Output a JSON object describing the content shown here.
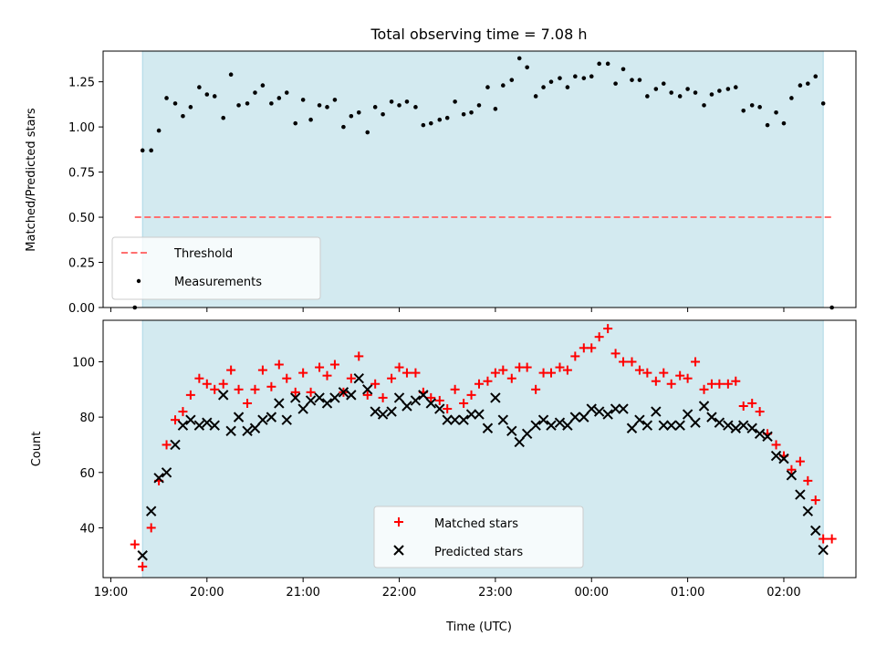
{
  "chart_data": [
    {
      "type": "scatter",
      "title": "Total observing time = 7.08 h",
      "xlabel": "",
      "ylabel": "Matched/Predicted stars",
      "ylim": [
        0,
        1.42
      ],
      "yticks": [
        "0.00",
        "0.25",
        "0.50",
        "0.75",
        "1.00",
        "1.25"
      ],
      "ytick_values": [
        0,
        0.25,
        0.5,
        0.75,
        1.0,
        1.25
      ],
      "xlim": [
        -0.08,
        7.75
      ],
      "xtick_values": [
        0,
        1,
        2,
        3,
        4,
        5,
        6,
        7
      ],
      "observing_window": [
        0.33,
        7.41
      ],
      "shade_color": "#d3eaf0",
      "threshold": {
        "name": "Threshold",
        "value": 0.5,
        "x_range": [
          0.25,
          7.5
        ],
        "color": "#ff7070"
      },
      "series": [
        {
          "name": "Measurements",
          "color": "#000000",
          "points": [
            [
              0.25,
              0.0
            ],
            [
              0.33,
              0.87
            ],
            [
              0.42,
              0.87
            ],
            [
              0.5,
              0.98
            ],
            [
              0.58,
              1.16
            ],
            [
              0.67,
              1.13
            ],
            [
              0.75,
              1.06
            ],
            [
              0.83,
              1.11
            ],
            [
              0.92,
              1.22
            ],
            [
              1.0,
              1.18
            ],
            [
              1.08,
              1.17
            ],
            [
              1.17,
              1.05
            ],
            [
              1.25,
              1.29
            ],
            [
              1.33,
              1.12
            ],
            [
              1.42,
              1.13
            ],
            [
              1.5,
              1.19
            ],
            [
              1.58,
              1.23
            ],
            [
              1.67,
              1.13
            ],
            [
              1.75,
              1.16
            ],
            [
              1.83,
              1.19
            ],
            [
              1.92,
              1.02
            ],
            [
              2.0,
              1.15
            ],
            [
              2.08,
              1.04
            ],
            [
              2.17,
              1.12
            ],
            [
              2.25,
              1.11
            ],
            [
              2.33,
              1.15
            ],
            [
              2.42,
              1.0
            ],
            [
              2.5,
              1.06
            ],
            [
              2.58,
              1.08
            ],
            [
              2.67,
              0.97
            ],
            [
              2.75,
              1.11
            ],
            [
              2.83,
              1.07
            ],
            [
              2.92,
              1.14
            ],
            [
              3.0,
              1.12
            ],
            [
              3.08,
              1.14
            ],
            [
              3.17,
              1.11
            ],
            [
              3.25,
              1.01
            ],
            [
              3.33,
              1.02
            ],
            [
              3.42,
              1.04
            ],
            [
              3.5,
              1.05
            ],
            [
              3.58,
              1.14
            ],
            [
              3.67,
              1.07
            ],
            [
              3.75,
              1.08
            ],
            [
              3.83,
              1.12
            ],
            [
              3.92,
              1.22
            ],
            [
              4.0,
              1.1
            ],
            [
              4.08,
              1.23
            ],
            [
              4.17,
              1.26
            ],
            [
              4.25,
              1.38
            ],
            [
              4.33,
              1.33
            ],
            [
              4.42,
              1.17
            ],
            [
              4.5,
              1.22
            ],
            [
              4.58,
              1.25
            ],
            [
              4.67,
              1.27
            ],
            [
              4.75,
              1.22
            ],
            [
              4.83,
              1.28
            ],
            [
              4.92,
              1.27
            ],
            [
              5.0,
              1.28
            ],
            [
              5.08,
              1.35
            ],
            [
              5.17,
              1.35
            ],
            [
              5.25,
              1.24
            ],
            [
              5.33,
              1.32
            ],
            [
              5.42,
              1.26
            ],
            [
              5.5,
              1.26
            ],
            [
              5.58,
              1.17
            ],
            [
              5.67,
              1.21
            ],
            [
              5.75,
              1.24
            ],
            [
              5.83,
              1.19
            ],
            [
              5.92,
              1.17
            ],
            [
              6.0,
              1.21
            ],
            [
              6.08,
              1.19
            ],
            [
              6.17,
              1.12
            ],
            [
              6.25,
              1.18
            ],
            [
              6.33,
              1.2
            ],
            [
              6.42,
              1.21
            ],
            [
              6.5,
              1.22
            ],
            [
              6.58,
              1.09
            ],
            [
              6.67,
              1.12
            ],
            [
              6.75,
              1.11
            ],
            [
              6.83,
              1.01
            ],
            [
              6.92,
              1.08
            ],
            [
              7.0,
              1.02
            ],
            [
              7.08,
              1.16
            ],
            [
              7.17,
              1.23
            ],
            [
              7.25,
              1.24
            ],
            [
              7.33,
              1.28
            ],
            [
              7.41,
              1.13
            ],
            [
              7.5,
              0.0
            ]
          ]
        }
      ],
      "legend": {
        "placement": "lower-left",
        "entries": [
          "Threshold",
          "Measurements"
        ]
      }
    },
    {
      "type": "scatter",
      "title": "",
      "xlabel": "Time (UTC)",
      "ylabel": "Count",
      "ylim": [
        22,
        115
      ],
      "yticks": [
        "40",
        "60",
        "80",
        "100"
      ],
      "ytick_values": [
        40,
        60,
        80,
        100
      ],
      "xlim": [
        -0.08,
        7.75
      ],
      "xtick_values": [
        0,
        1,
        2,
        3,
        4,
        5,
        6,
        7
      ],
      "xticks": [
        "19:00",
        "20:00",
        "21:00",
        "22:00",
        "23:00",
        "00:00",
        "01:00",
        "02:00"
      ],
      "observing_window": [
        0.33,
        7.41
      ],
      "shade_color": "#d3eaf0",
      "series": [
        {
          "name": "Matched stars",
          "marker": "plus",
          "color": "#ff0000",
          "points": [
            [
              0.25,
              34
            ],
            [
              0.33,
              26
            ],
            [
              0.42,
              40
            ],
            [
              0.5,
              57
            ],
            [
              0.58,
              70
            ],
            [
              0.67,
              79
            ],
            [
              0.75,
              82
            ],
            [
              0.83,
              88
            ],
            [
              0.92,
              94
            ],
            [
              1.0,
              92
            ],
            [
              1.08,
              90
            ],
            [
              1.17,
              92
            ],
            [
              1.25,
              97
            ],
            [
              1.33,
              90
            ],
            [
              1.42,
              85
            ],
            [
              1.5,
              90
            ],
            [
              1.58,
              97
            ],
            [
              1.67,
              91
            ],
            [
              1.75,
              99
            ],
            [
              1.83,
              94
            ],
            [
              1.92,
              89
            ],
            [
              2.0,
              96
            ],
            [
              2.08,
              89
            ],
            [
              2.17,
              98
            ],
            [
              2.25,
              95
            ],
            [
              2.33,
              99
            ],
            [
              2.42,
              89
            ],
            [
              2.5,
              94
            ],
            [
              2.58,
              102
            ],
            [
              2.67,
              88
            ],
            [
              2.75,
              92
            ],
            [
              2.83,
              87
            ],
            [
              2.92,
              94
            ],
            [
              3.0,
              98
            ],
            [
              3.08,
              96
            ],
            [
              3.17,
              96
            ],
            [
              3.25,
              89
            ],
            [
              3.33,
              87
            ],
            [
              3.42,
              86
            ],
            [
              3.5,
              83
            ],
            [
              3.58,
              90
            ],
            [
              3.67,
              85
            ],
            [
              3.75,
              88
            ],
            [
              3.83,
              92
            ],
            [
              3.92,
              93
            ],
            [
              4.0,
              96
            ],
            [
              4.08,
              97
            ],
            [
              4.17,
              94
            ],
            [
              4.25,
              98
            ],
            [
              4.33,
              98
            ],
            [
              4.42,
              90
            ],
            [
              4.5,
              96
            ],
            [
              4.58,
              96
            ],
            [
              4.67,
              98
            ],
            [
              4.75,
              97
            ],
            [
              4.83,
              102
            ],
            [
              4.92,
              105
            ],
            [
              5.0,
              105
            ],
            [
              5.08,
              109
            ],
            [
              5.17,
              112
            ],
            [
              5.25,
              103
            ],
            [
              5.33,
              100
            ],
            [
              5.42,
              100
            ],
            [
              5.5,
              97
            ],
            [
              5.58,
              96
            ],
            [
              5.67,
              93
            ],
            [
              5.75,
              96
            ],
            [
              5.83,
              92
            ],
            [
              5.92,
              95
            ],
            [
              6.0,
              94
            ],
            [
              6.08,
              100
            ],
            [
              6.17,
              90
            ],
            [
              6.25,
              92
            ],
            [
              6.33,
              92
            ],
            [
              6.42,
              92
            ],
            [
              6.5,
              93
            ],
            [
              6.58,
              84
            ],
            [
              6.67,
              85
            ],
            [
              6.75,
              82
            ],
            [
              6.83,
              74
            ],
            [
              6.92,
              70
            ],
            [
              7.0,
              66
            ],
            [
              7.08,
              61
            ],
            [
              7.17,
              64
            ],
            [
              7.25,
              57
            ],
            [
              7.33,
              50
            ],
            [
              7.41,
              36
            ],
            [
              7.5,
              36
            ]
          ]
        },
        {
          "name": "Predicted stars",
          "marker": "x",
          "color": "#000000",
          "points": [
            [
              0.33,
              30
            ],
            [
              0.42,
              46
            ],
            [
              0.5,
              58
            ],
            [
              0.58,
              60
            ],
            [
              0.67,
              70
            ],
            [
              0.75,
              77
            ],
            [
              0.83,
              79
            ],
            [
              0.92,
              77
            ],
            [
              1.0,
              78
            ],
            [
              1.08,
              77
            ],
            [
              1.17,
              88
            ],
            [
              1.25,
              75
            ],
            [
              1.33,
              80
            ],
            [
              1.42,
              75
            ],
            [
              1.5,
              76
            ],
            [
              1.58,
              79
            ],
            [
              1.67,
              80
            ],
            [
              1.75,
              85
            ],
            [
              1.83,
              79
            ],
            [
              1.92,
              87
            ],
            [
              2.0,
              83
            ],
            [
              2.08,
              86
            ],
            [
              2.17,
              87
            ],
            [
              2.25,
              85
            ],
            [
              2.33,
              87
            ],
            [
              2.42,
              89
            ],
            [
              2.5,
              88
            ],
            [
              2.58,
              94
            ],
            [
              2.67,
              90
            ],
            [
              2.75,
              82
            ],
            [
              2.83,
              81
            ],
            [
              2.92,
              82
            ],
            [
              3.0,
              87
            ],
            [
              3.08,
              84
            ],
            [
              3.17,
              86
            ],
            [
              3.25,
              88
            ],
            [
              3.33,
              85
            ],
            [
              3.42,
              83
            ],
            [
              3.5,
              79
            ],
            [
              3.58,
              79
            ],
            [
              3.67,
              79
            ],
            [
              3.75,
              81
            ],
            [
              3.83,
              81
            ],
            [
              3.92,
              76
            ],
            [
              4.0,
              87
            ],
            [
              4.08,
              79
            ],
            [
              4.17,
              75
            ],
            [
              4.25,
              71
            ],
            [
              4.33,
              74
            ],
            [
              4.42,
              77
            ],
            [
              4.5,
              79
            ],
            [
              4.58,
              77
            ],
            [
              4.67,
              78
            ],
            [
              4.75,
              77
            ],
            [
              4.83,
              80
            ],
            [
              4.92,
              80
            ],
            [
              5.0,
              83
            ],
            [
              5.08,
              82
            ],
            [
              5.17,
              81
            ],
            [
              5.25,
              83
            ],
            [
              5.33,
              83
            ],
            [
              5.42,
              76
            ],
            [
              5.5,
              79
            ],
            [
              5.58,
              77
            ],
            [
              5.67,
              82
            ],
            [
              5.75,
              77
            ],
            [
              5.83,
              77
            ],
            [
              5.92,
              77
            ],
            [
              6.0,
              81
            ],
            [
              6.08,
              78
            ],
            [
              6.17,
              84
            ],
            [
              6.25,
              80
            ],
            [
              6.33,
              78
            ],
            [
              6.42,
              77
            ],
            [
              6.5,
              76
            ],
            [
              6.58,
              77
            ],
            [
              6.67,
              76
            ],
            [
              6.75,
              74
            ],
            [
              6.83,
              73
            ],
            [
              6.92,
              66
            ],
            [
              7.0,
              65
            ],
            [
              7.08,
              59
            ],
            [
              7.17,
              52
            ],
            [
              7.25,
              46
            ],
            [
              7.33,
              39
            ],
            [
              7.41,
              32
            ]
          ]
        }
      ],
      "legend": {
        "placement": "lower-center",
        "entries": [
          "Matched stars",
          "Predicted stars"
        ]
      }
    }
  ]
}
